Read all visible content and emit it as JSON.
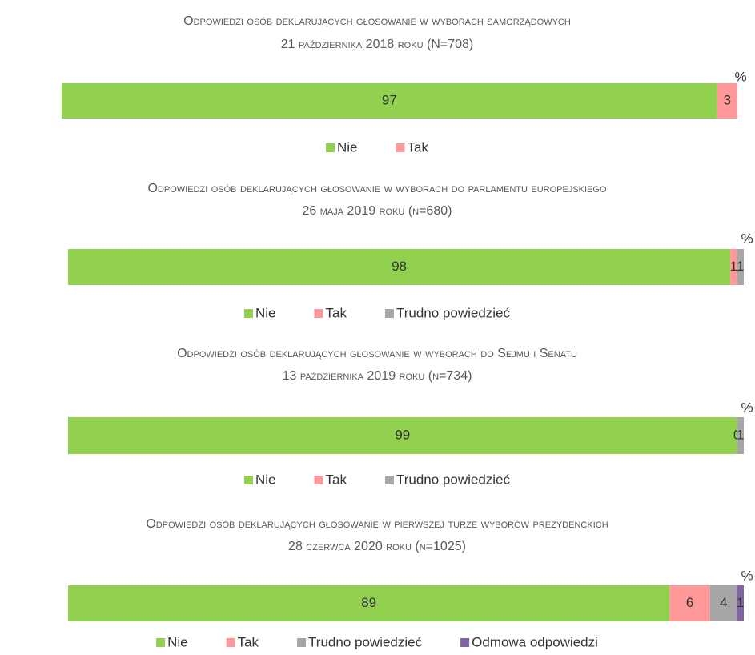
{
  "chart_data": [
    {
      "type": "bar",
      "orientation": "horizontal",
      "stacked": true,
      "title": "Odpowiedzi osób deklarujących głosowanie w wyborach samorządowych",
      "subtitle": "21 października 2018 roku (N=708)",
      "annotation": "%",
      "xlim": [
        0,
        100
      ],
      "series": [
        {
          "name": "Nie",
          "color": "#92d050",
          "values": [
            97
          ]
        },
        {
          "name": "Tak",
          "color": "#ff9999",
          "values": [
            3
          ]
        }
      ]
    },
    {
      "type": "bar",
      "orientation": "horizontal",
      "stacked": true,
      "title": "Odpowiedzi osób deklarujących głosowanie w wyborach do parlamentu europejskiego",
      "subtitle": "26 maja 2019 roku (n=680)",
      "annotation": "%",
      "xlim": [
        0,
        100
      ],
      "series": [
        {
          "name": "Nie",
          "color": "#92d050",
          "values": [
            98
          ]
        },
        {
          "name": "Tak",
          "color": "#ff9999",
          "values": [
            1
          ]
        },
        {
          "name": "Trudno powiedzieć",
          "color": "#a6a6a6",
          "values": [
            1
          ]
        }
      ]
    },
    {
      "type": "bar",
      "orientation": "horizontal",
      "stacked": true,
      "title": "Odpowiedzi osób deklarujących głosowanie w wyborach do Sejmu i Senatu",
      "subtitle": "13 października 2019 roku (n=734)",
      "annotation": "%",
      "xlim": [
        0,
        100
      ],
      "series": [
        {
          "name": "Nie",
          "color": "#92d050",
          "values": [
            99
          ]
        },
        {
          "name": "Tak",
          "color": "#ff9999",
          "values": [
            0
          ]
        },
        {
          "name": "Trudno powiedzieć",
          "color": "#a6a6a6",
          "values": [
            1
          ]
        }
      ]
    },
    {
      "type": "bar",
      "orientation": "horizontal",
      "stacked": true,
      "title": "Odpowiedzi osób deklarujących głosowanie w pierwszej turze wyborów prezydenckich",
      "subtitle": "28 czerwca 2020 roku (n=1025)",
      "annotation": "%",
      "xlim": [
        0,
        100
      ],
      "series": [
        {
          "name": "Nie",
          "color": "#92d050",
          "values": [
            89
          ]
        },
        {
          "name": "Tak",
          "color": "#ff9999",
          "values": [
            6
          ]
        },
        {
          "name": "Trudno powiedzieć",
          "color": "#a6a6a6",
          "values": [
            4
          ]
        },
        {
          "name": "Odmowa odpowiedzi",
          "color": "#8064a2",
          "values": [
            1
          ]
        }
      ]
    }
  ]
}
